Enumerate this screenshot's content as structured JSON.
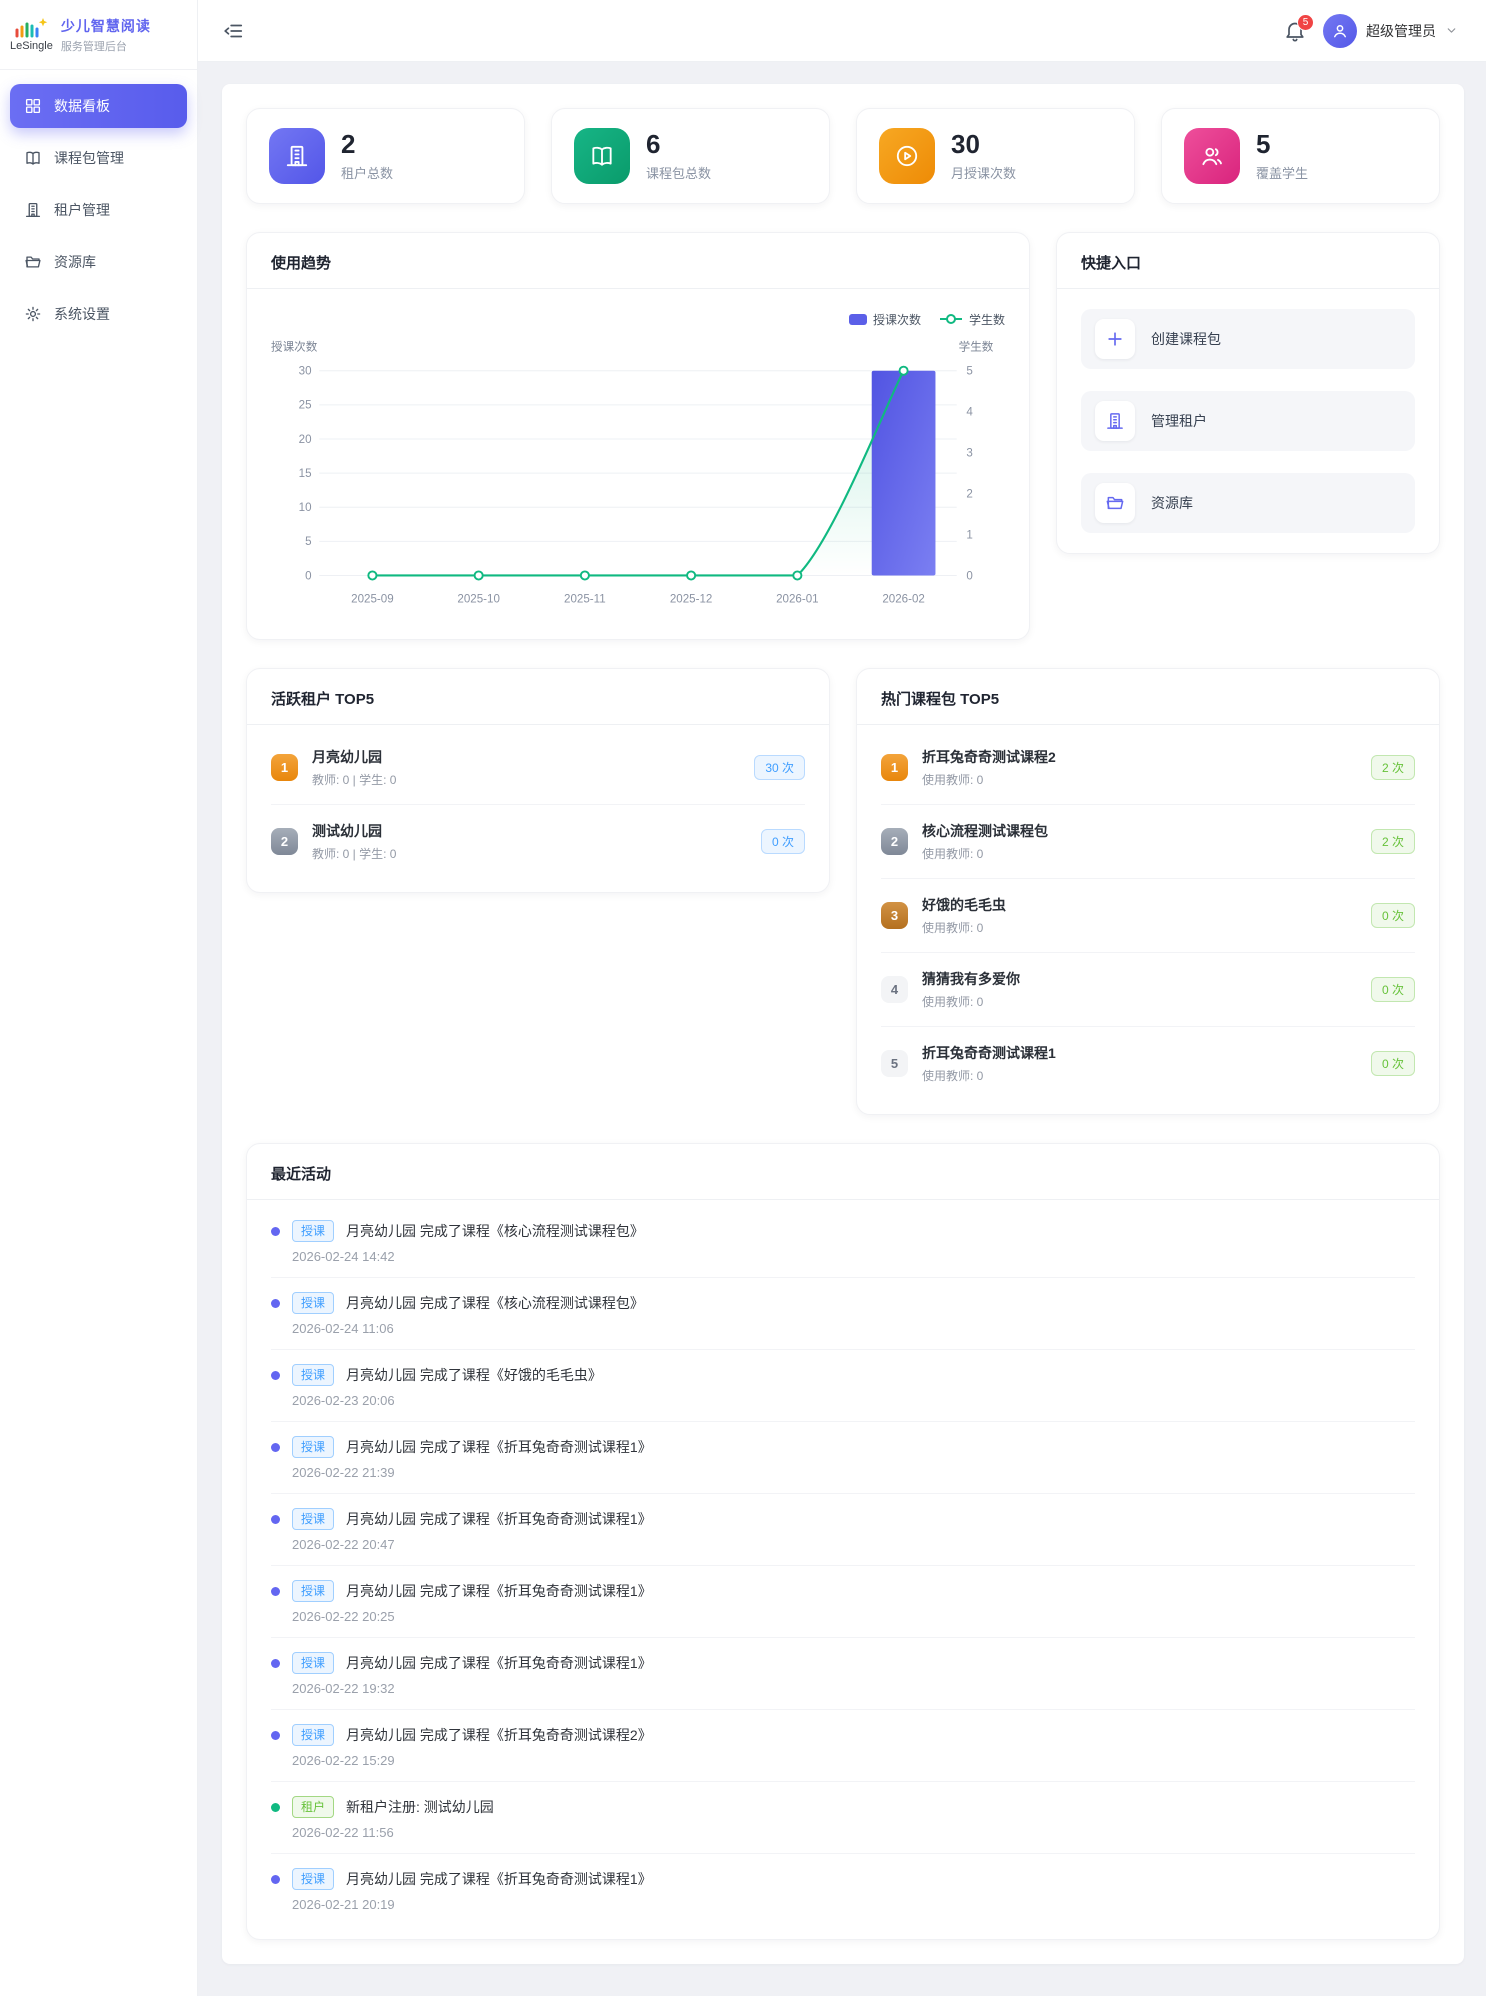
{
  "brand": {
    "logo_text": "LeSingle",
    "title": "少儿智慧阅读",
    "subtitle": "服务管理后台"
  },
  "header": {
    "notification_count": "5",
    "user_name": "超级管理员"
  },
  "sidebar": {
    "items": [
      {
        "label": "数据看板"
      },
      {
        "label": "课程包管理"
      },
      {
        "label": "租户管理"
      },
      {
        "label": "资源库"
      },
      {
        "label": "系统设置"
      }
    ]
  },
  "stats": {
    "cards": [
      {
        "value": "2",
        "label": "租户总数"
      },
      {
        "value": "6",
        "label": "课程包总数"
      },
      {
        "value": "30",
        "label": "月授课次数"
      },
      {
        "value": "5",
        "label": "覆盖学生"
      }
    ]
  },
  "trend": {
    "title": "使用趋势"
  },
  "chart_data": {
    "type": "bar+line",
    "title": "使用趋势",
    "categories": [
      "2025-09",
      "2025-10",
      "2025-11",
      "2025-12",
      "2026-01",
      "2026-02"
    ],
    "series": [
      {
        "name": "授课次数",
        "type": "bar",
        "axis": "left",
        "values": [
          0,
          0,
          0,
          0,
          0,
          30
        ],
        "color": "#5b5fe8"
      },
      {
        "name": "学生数",
        "type": "line",
        "axis": "right",
        "values": [
          0,
          0,
          0,
          0,
          0,
          5
        ],
        "color": "#10b981"
      }
    ],
    "left_axis": {
      "label": "授课次数",
      "min": 0,
      "max": 30,
      "ticks": [
        0,
        5,
        10,
        15,
        20,
        25,
        30
      ]
    },
    "right_axis": {
      "label": "学生数",
      "min": 0,
      "max": 5,
      "ticks": [
        0,
        1,
        2,
        3,
        4,
        5
      ]
    },
    "grid": true,
    "legend_position": "top-right"
  },
  "quick_access": {
    "title": "快捷入口",
    "items": [
      {
        "label": "创建课程包"
      },
      {
        "label": "管理租户"
      },
      {
        "label": "资源库"
      }
    ]
  },
  "active_tenants": {
    "title": "活跃租户 TOP5",
    "items": [
      {
        "rank": "1",
        "name": "月亮幼儿园",
        "meta": "教师: 0 | 学生: 0",
        "count": "30 次"
      },
      {
        "rank": "2",
        "name": "测试幼儿园",
        "meta": "教师: 0 | 学生: 0",
        "count": "0 次"
      }
    ]
  },
  "hot_courses": {
    "title": "热门课程包 TOP5",
    "items": [
      {
        "rank": "1",
        "name": "折耳兔奇奇测试课程2",
        "meta": "使用教师: 0",
        "count": "2 次"
      },
      {
        "rank": "2",
        "name": "核心流程测试课程包",
        "meta": "使用教师: 0",
        "count": "2 次"
      },
      {
        "rank": "3",
        "name": "好饿的毛毛虫",
        "meta": "使用教师: 0",
        "count": "0 次"
      },
      {
        "rank": "4",
        "name": "猜猜我有多爱你",
        "meta": "使用教师: 0",
        "count": "0 次"
      },
      {
        "rank": "5",
        "name": "折耳兔奇奇测试课程1",
        "meta": "使用教师: 0",
        "count": "0 次"
      }
    ]
  },
  "recent_activity": {
    "title": "最近活动",
    "items": [
      {
        "kind": "teach",
        "tag": "授课",
        "text": "月亮幼儿园 完成了课程《核心流程测试课程包》",
        "time": "2026-02-24 14:42"
      },
      {
        "kind": "teach",
        "tag": "授课",
        "text": "月亮幼儿园 完成了课程《核心流程测试课程包》",
        "time": "2026-02-24 11:06"
      },
      {
        "kind": "teach",
        "tag": "授课",
        "text": "月亮幼儿园 完成了课程《好饿的毛毛虫》",
        "time": "2026-02-23 20:06"
      },
      {
        "kind": "teach",
        "tag": "授课",
        "text": "月亮幼儿园 完成了课程《折耳兔奇奇测试课程1》",
        "time": "2026-02-22 21:39"
      },
      {
        "kind": "teach",
        "tag": "授课",
        "text": "月亮幼儿园 完成了课程《折耳兔奇奇测试课程1》",
        "time": "2026-02-22 20:47"
      },
      {
        "kind": "teach",
        "tag": "授课",
        "text": "月亮幼儿园 完成了课程《折耳兔奇奇测试课程1》",
        "time": "2026-02-22 20:25"
      },
      {
        "kind": "teach",
        "tag": "授课",
        "text": "月亮幼儿园 完成了课程《折耳兔奇奇测试课程1》",
        "time": "2026-02-22 19:32"
      },
      {
        "kind": "teach",
        "tag": "授课",
        "text": "月亮幼儿园 完成了课程《折耳兔奇奇测试课程2》",
        "time": "2026-02-22 15:29"
      },
      {
        "kind": "tenant",
        "tag": "租户",
        "text": "新租户注册: 测试幼儿园",
        "time": "2026-02-22 11:56"
      },
      {
        "kind": "teach",
        "tag": "授课",
        "text": "月亮幼儿园 完成了课程《折耳兔奇奇测试课程1》",
        "time": "2026-02-21 20:19"
      }
    ]
  },
  "colors": {
    "primary": "#5b5fe8",
    "success": "#10b981",
    "warning": "#f59e0b",
    "pink": "#e0338c",
    "tag_blue": "#409eff",
    "tag_green": "#67c23a"
  }
}
